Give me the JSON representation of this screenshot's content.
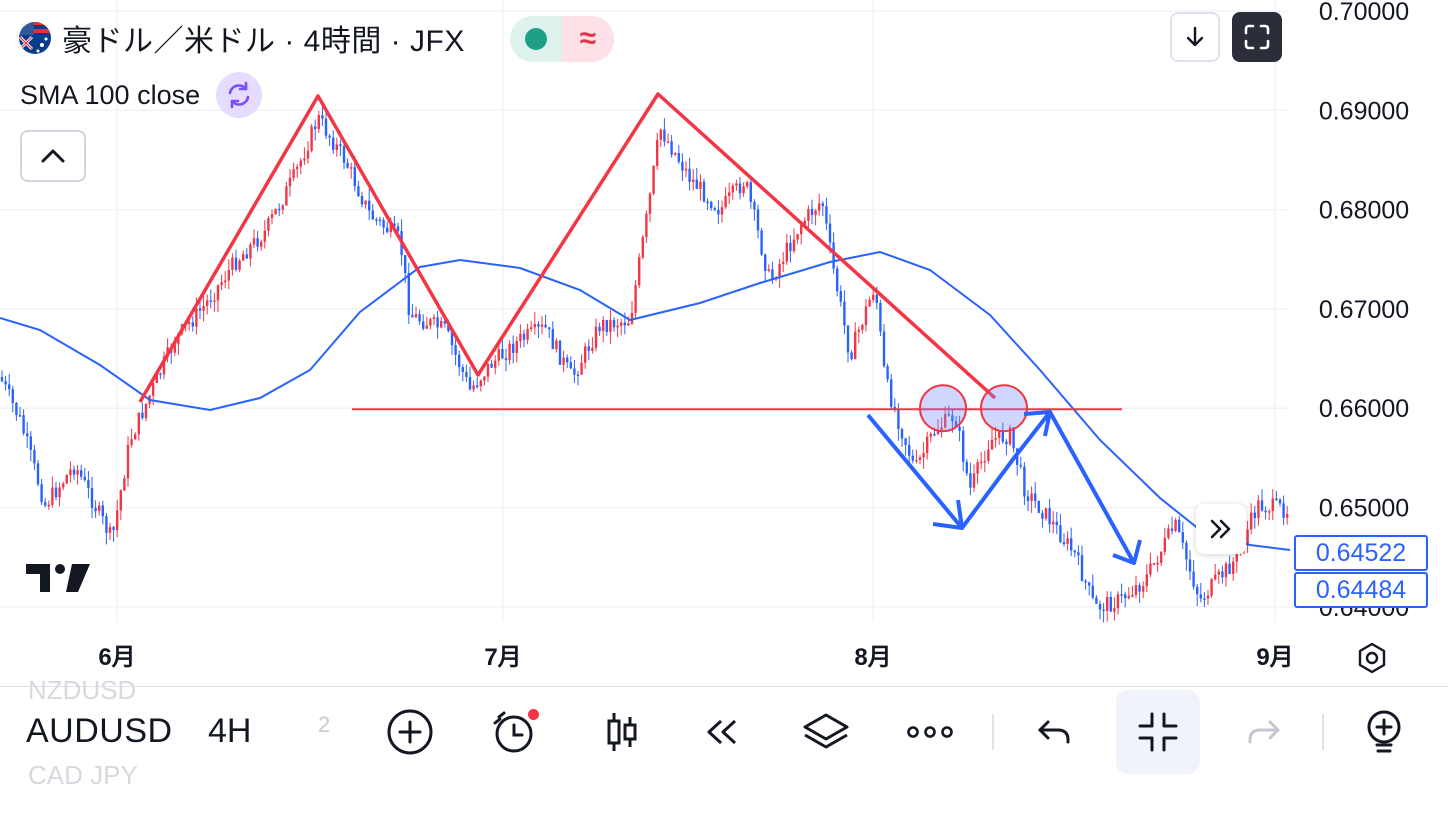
{
  "header": {
    "title": "豪ドル／米ドル · 4時間 · JFX",
    "flag_icon": "australia-us-flag-icon",
    "status_dot_color": "#1f9e88",
    "status_wave_glyph": "≈"
  },
  "indicator": {
    "label": "SMA 100 close",
    "icon": "refresh-icon"
  },
  "colors": {
    "up_candle": "#f23645",
    "down_candle": "#2962ff",
    "sma_line": "#2962ff",
    "pattern_lines": "#f23645",
    "neckline": "#f23645",
    "arrows": "#2962ff",
    "grid": "#f0f3fa"
  },
  "price_axis": {
    "ticks": [
      "0.70000",
      "0.69000",
      "0.68000",
      "0.67000",
      "0.66000",
      "0.65000",
      "0.64000"
    ],
    "labels": {
      "sma_value": "0.64522",
      "last_price": "0.64484"
    }
  },
  "time_axis": {
    "ticks": [
      "6月",
      "7月",
      "8月",
      "9月"
    ]
  },
  "chart_data": {
    "type": "candlestick",
    "symbol": "AUDUSD",
    "interval": "4H",
    "ylim": [
      0.638,
      0.701
    ],
    "grid": true,
    "indicators": [
      {
        "name": "SMA 100 close"
      }
    ],
    "drawings": {
      "neckline_price": 0.6599,
      "rollover_prices": [
        0.66,
        0.66
      ]
    }
  },
  "toolbar": {
    "symbol_prev": "NZDUSD",
    "symbol": "AUDUSD",
    "symbol_next": "CAD JPY",
    "interval": "4H",
    "interval_next": "2"
  }
}
